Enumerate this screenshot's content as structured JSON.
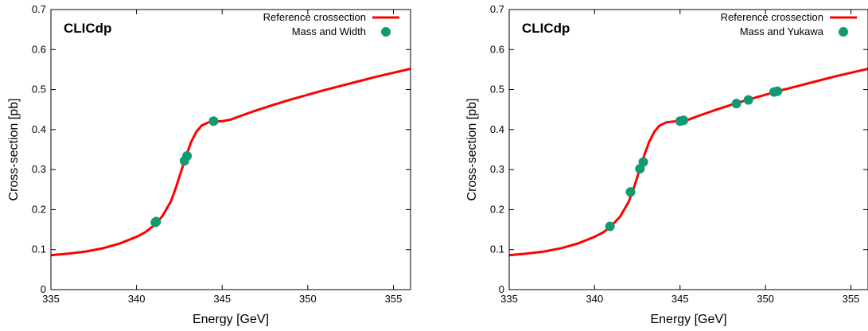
{
  "chart_data": [
    {
      "type": "line",
      "brand": "CLICdp",
      "xlabel": "Energy [GeV]",
      "ylabel": "Cross-section [pb]",
      "xlim": [
        335,
        356
      ],
      "ylim": [
        0,
        0.7
      ],
      "x_ticks": [
        "335",
        "340",
        "345",
        "350",
        "355"
      ],
      "y_ticks": [
        "0",
        "0.1",
        "0.2",
        "0.3",
        "0.4",
        "0.5",
        "0.6",
        "0.7"
      ],
      "legend_position": "top-right",
      "series": [
        {
          "name": "Reference crossection",
          "kind": "line",
          "color": "#ff0000",
          "x": [
            335,
            336,
            337,
            338,
            339,
            340,
            340.5,
            341,
            341.5,
            342,
            342.3,
            342.6,
            342.9,
            343.2,
            343.5,
            343.8,
            344.2,
            344.6,
            345,
            345.5,
            346,
            347,
            348,
            349,
            350,
            351,
            352,
            353,
            354,
            355,
            356
          ],
          "y": [
            0.086,
            0.09,
            0.095,
            0.103,
            0.115,
            0.132,
            0.143,
            0.16,
            0.183,
            0.22,
            0.255,
            0.295,
            0.335,
            0.37,
            0.395,
            0.41,
            0.418,
            0.42,
            0.421,
            0.425,
            0.433,
            0.448,
            0.462,
            0.475,
            0.487,
            0.499,
            0.51,
            0.521,
            0.532,
            0.542,
            0.552
          ]
        },
        {
          "name": "Mass and Width",
          "kind": "points",
          "color": "#0f9a72",
          "x": [
            341.1,
            341.15,
            342.8,
            342.95,
            344.5
          ],
          "y": [
            0.168,
            0.17,
            0.322,
            0.334,
            0.421
          ]
        }
      ]
    },
    {
      "type": "line",
      "brand": "CLICdp",
      "xlabel": "Energy [GeV]",
      "ylabel": "Cross-section [pb]",
      "xlim": [
        335,
        356
      ],
      "ylim": [
        0,
        0.7
      ],
      "x_ticks": [
        "335",
        "340",
        "345",
        "350",
        "355"
      ],
      "y_ticks": [
        "0",
        "0.1",
        "0.2",
        "0.3",
        "0.4",
        "0.5",
        "0.6",
        "0.7"
      ],
      "legend_position": "top-right",
      "series": [
        {
          "name": "Reference crossection",
          "kind": "line",
          "color": "#ff0000",
          "x": [
            335,
            336,
            337,
            338,
            339,
            340,
            340.5,
            341,
            341.5,
            342,
            342.3,
            342.6,
            342.9,
            343.2,
            343.5,
            343.8,
            344.2,
            344.6,
            345,
            345.5,
            346,
            347,
            348,
            349,
            350,
            351,
            352,
            353,
            354,
            355,
            356
          ],
          "y": [
            0.086,
            0.09,
            0.095,
            0.103,
            0.115,
            0.132,
            0.143,
            0.16,
            0.183,
            0.22,
            0.255,
            0.295,
            0.335,
            0.37,
            0.395,
            0.41,
            0.418,
            0.42,
            0.421,
            0.425,
            0.433,
            0.448,
            0.462,
            0.475,
            0.487,
            0.499,
            0.51,
            0.521,
            0.532,
            0.542,
            0.552
          ]
        },
        {
          "name": "Mass and Yukawa",
          "kind": "points",
          "color": "#0f9a72",
          "x": [
            340.9,
            342.1,
            342.65,
            342.85,
            345.0,
            345.2,
            348.3,
            349.0,
            350.5,
            350.7
          ],
          "y": [
            0.158,
            0.244,
            0.302,
            0.319,
            0.421,
            0.423,
            0.465,
            0.474,
            0.494,
            0.496
          ]
        }
      ]
    }
  ]
}
